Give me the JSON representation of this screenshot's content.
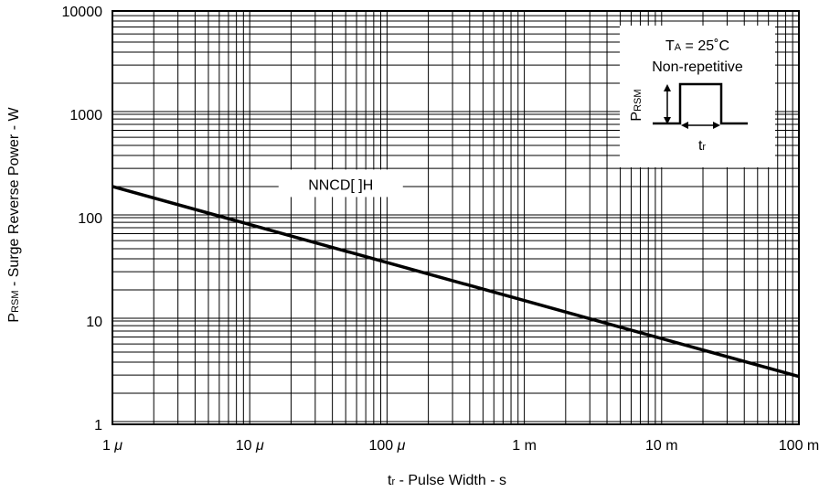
{
  "chart_data": {
    "type": "line",
    "x_scale": "log",
    "y_scale": "log",
    "xlim": [
      1e-06,
      0.1
    ],
    "ylim": [
      1,
      10000
    ],
    "grid": true,
    "xlabel_main": "t",
    "xlabel_sub": "r",
    "xlabel_rest": " - Pulse Width - s",
    "ylabel_main": "P",
    "ylabel_sub": "RSM",
    "ylabel_rest": " - Surge Reverse Power - W",
    "x_ticks": [
      {
        "value": 1e-06,
        "num": "1",
        "unit": "μ"
      },
      {
        "value": 1e-05,
        "num": "10",
        "unit": "μ"
      },
      {
        "value": 0.0001,
        "num": "100",
        "unit": "μ"
      },
      {
        "value": 0.001,
        "num": "1",
        "unit": "m"
      },
      {
        "value": 0.01,
        "num": "10",
        "unit": "m"
      },
      {
        "value": 0.1,
        "num": "100",
        "unit": "m"
      }
    ],
    "y_ticks": [
      {
        "value": 1,
        "label": "1"
      },
      {
        "value": 10,
        "label": "10"
      },
      {
        "value": 100,
        "label": "100"
      },
      {
        "value": 1000,
        "label": "1000"
      },
      {
        "value": 10000,
        "label": "10000"
      }
    ],
    "series": [
      {
        "name": "NNCD[ ]H",
        "x": [
          1e-06,
          0.1
        ],
        "y": [
          200,
          2.9
        ],
        "label_at": {
          "x": 4.6e-05,
          "y": 165
        }
      }
    ],
    "inset": {
      "line1_main": "T",
      "line1_sub": "A",
      "line1_rest": " = 25˚C",
      "line2": "Non-repetitive",
      "pulse_ylabel_main": "P",
      "pulse_ylabel_sub": "RSM",
      "pulse_xlabel_main": "t",
      "pulse_xlabel_sub": "r"
    }
  }
}
